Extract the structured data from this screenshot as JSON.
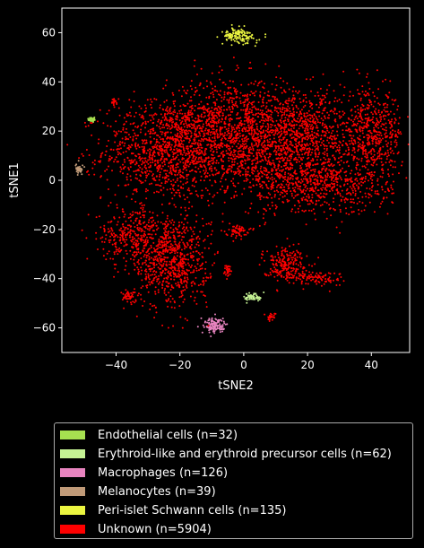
{
  "chart_data": {
    "type": "scatter",
    "title": "",
    "xlabel": "tSNE2",
    "ylabel": "tSNE1",
    "xlim": [
      -57,
      52
    ],
    "ylim": [
      -70,
      70
    ],
    "xticks": [
      -40,
      -20,
      0,
      20,
      40
    ],
    "yticks": [
      -60,
      -40,
      -20,
      0,
      20,
      40,
      60
    ],
    "tick_labels_x": [
      "−40",
      "−20",
      "0",
      "20",
      "40"
    ],
    "tick_labels_y": [
      "−60",
      "−40",
      "−20",
      "0",
      "20",
      "40",
      "60"
    ],
    "grid": false,
    "legend_position": "below",
    "series": [
      {
        "name": "Endothelial cells (n=32)",
        "color": "#a6e050",
        "count": 32,
        "clusters": [
          {
            "cx": -47.5,
            "cy": 24.8,
            "sx": 0.6,
            "sy": 0.5
          }
        ]
      },
      {
        "name": "Erythroid-like and erythroid precursor cells (n=62)",
        "color": "#c5f294",
        "count": 62,
        "clusters": [
          {
            "cx": 3.0,
            "cy": -47.5,
            "sx": 1.4,
            "sy": 0.9
          }
        ]
      },
      {
        "name": "Macrophages (n=126)",
        "color": "#e884c0",
        "count": 126,
        "clusters": [
          {
            "cx": -9.0,
            "cy": -59.0,
            "sx": 1.8,
            "sy": 1.6
          }
        ]
      },
      {
        "name": "Melanocytes (n=39)",
        "color": "#c09a78",
        "count": 39,
        "clusters": [
          {
            "cx": -51.5,
            "cy": 4.5,
            "sx": 0.6,
            "sy": 0.9
          }
        ]
      },
      {
        "name": "Peri-islet Schwann cells (n=135)",
        "color": "#ebf540",
        "count": 135,
        "clusters": [
          {
            "cx": -1.5,
            "cy": 58.5,
            "sx": 2.6,
            "sy": 1.6
          }
        ]
      },
      {
        "name": "Unknown (n=5904)",
        "color": "#ff0000",
        "count": 5904,
        "clusters": [
          {
            "cx": -24,
            "cy": 12,
            "sx": 10,
            "sy": 10,
            "w": 1100
          },
          {
            "cx": -4,
            "cy": 24,
            "sx": 10,
            "sy": 9,
            "w": 900
          },
          {
            "cx": 18,
            "cy": 18,
            "sx": 10,
            "sy": 9,
            "w": 900
          },
          {
            "cx": 40,
            "cy": 18,
            "sx": 5,
            "sy": 9,
            "w": 500
          },
          {
            "cx": 22,
            "cy": -2,
            "sx": 12,
            "sy": 6,
            "w": 700
          },
          {
            "cx": -36,
            "cy": -22,
            "sx": 5,
            "sy": 5,
            "w": 250
          },
          {
            "cx": -23,
            "cy": -32,
            "sx": 6,
            "sy": 10,
            "w": 800
          },
          {
            "cx": -2,
            "cy": -20.5,
            "sx": 1.8,
            "sy": 1.2,
            "w": 60
          },
          {
            "cx": 13,
            "cy": -34,
            "sx": 3.5,
            "sy": 3.5,
            "w": 220
          },
          {
            "cx": 23,
            "cy": -40,
            "sx": 4,
            "sy": 1.5,
            "w": 90
          },
          {
            "cx": -5,
            "cy": -36.5,
            "sx": 0.6,
            "sy": 1.3,
            "w": 30
          },
          {
            "cx": 8.5,
            "cy": -55.5,
            "sx": 0.8,
            "sy": 0.8,
            "w": 25
          },
          {
            "cx": -40.5,
            "cy": 32,
            "sx": 0.6,
            "sy": 0.6,
            "w": 20
          },
          {
            "cx": -36,
            "cy": -47,
            "sx": 1.5,
            "sy": 1.2,
            "w": 40
          },
          {
            "cx": 0,
            "cy": 8,
            "sx": 8,
            "sy": 6,
            "w": 249
          }
        ]
      }
    ]
  }
}
